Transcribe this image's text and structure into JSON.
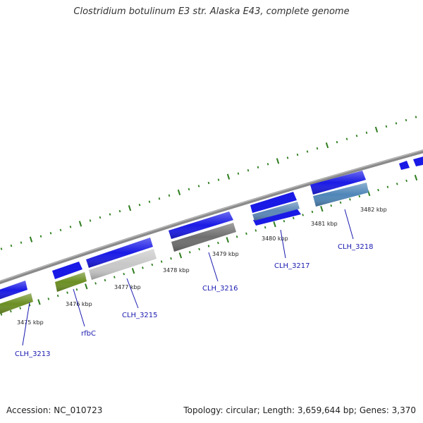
{
  "title": "Clostridium botulinum E3 str. Alaska E43, complete genome",
  "footer": {
    "accession": "Accession: NC_010723",
    "summary": "Topology: circular; Length: 3,659,644 bp; Genes: 3,370"
  },
  "colors": {
    "backbone": "#8a8a8a",
    "tick": "#2e7d1e",
    "forward_gene": "#1a1ae6",
    "label": "#1a1ab0",
    "rfbC": "#6b8e23",
    "CLH_3215": "#c8c8c8",
    "CLH_3216": "#6e6e6e",
    "CLH_3217": "#5b87b8",
    "CLH_3218": "#4f86b8",
    "CLH_3213": "#6b8e23"
  },
  "kbp_labels": [
    "3475 kbp",
    "3476 kbp",
    "3477 kbp",
    "3478 kbp",
    "3479 kbp",
    "3480 kbp",
    "3481 kbp",
    "3482 kbp"
  ],
  "genes": [
    {
      "name": "CLH_3213",
      "color_key": "CLH_3213"
    },
    {
      "name": "rfbC",
      "color_key": "rfbC"
    },
    {
      "name": "CLH_3215",
      "color_key": "CLH_3215"
    },
    {
      "name": "CLH_3216",
      "color_key": "CLH_3216"
    },
    {
      "name": "CLH_3217",
      "color_key": "CLH_3217"
    },
    {
      "name": "CLH_3218",
      "color_key": "CLH_3218"
    }
  ]
}
